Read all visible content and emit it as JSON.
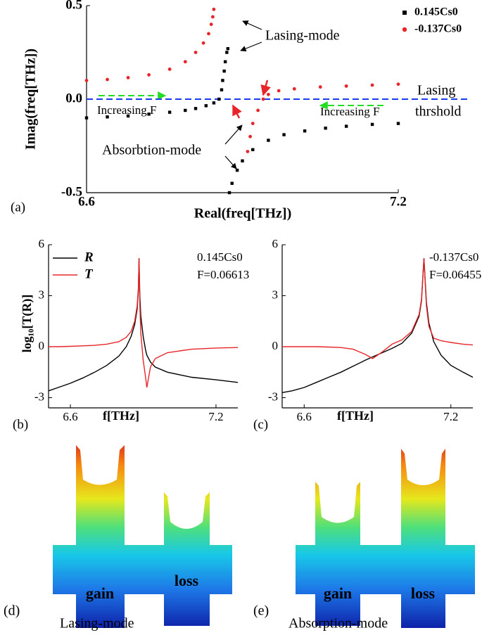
{
  "chart_data": [
    {
      "type": "scatter",
      "panel_label": "(a)",
      "x_label": "Real(freq[THz])",
      "y_label": "Imag(freq[THz])",
      "xlim": [
        6.6,
        7.2
      ],
      "ylim": [
        -0.5,
        0.5
      ],
      "xticks": [
        6.6,
        7.2
      ],
      "yticks": [
        -0.5,
        {
          "value": 0,
          "label": "0.0"
        },
        0.5
      ],
      "series": [
        {
          "name": "0.145Cs0",
          "color": "#000000",
          "marker": "square",
          "x": [
            6.6,
            6.64,
            6.68,
            6.72,
            6.76,
            6.79,
            6.81,
            6.83,
            6.845,
            6.855,
            6.86,
            6.862,
            6.865,
            6.867,
            6.87,
            6.872,
            6.875,
            6.88,
            6.89,
            6.9,
            6.92,
            6.95,
            6.98,
            7.02,
            7.06,
            7.1,
            7.15,
            7.2
          ],
          "values": [
            -0.1,
            -0.095,
            -0.09,
            -0.08,
            -0.07,
            -0.06,
            -0.05,
            -0.035,
            -0.02,
            0.0,
            0.05,
            0.1,
            0.15,
            0.2,
            0.25,
            0.27,
            -0.5,
            -0.45,
            -0.38,
            -0.33,
            -0.27,
            -0.22,
            -0.19,
            -0.17,
            -0.155,
            -0.145,
            -0.135,
            -0.13
          ]
        },
        {
          "name": "-0.137Cs0",
          "color": "#e8262a",
          "marker": "circle",
          "x": [
            6.6,
            6.64,
            6.68,
            6.72,
            6.76,
            6.79,
            6.81,
            6.825,
            6.835,
            6.84,
            6.843,
            6.845,
            6.91,
            6.915,
            6.92,
            6.93,
            6.94,
            6.95,
            6.97,
            7.0,
            7.05,
            7.1,
            7.15,
            7.2
          ],
          "values": [
            0.1,
            0.105,
            0.115,
            0.13,
            0.16,
            0.2,
            0.25,
            0.3,
            0.35,
            0.4,
            0.44,
            0.48,
            -0.28,
            -0.2,
            -0.13,
            -0.06,
            0.0,
            0.025,
            0.045,
            0.055,
            0.065,
            0.07,
            0.075,
            0.08
          ]
        }
      ],
      "threshold": {
        "value": 0,
        "color": "#1a3cf0",
        "label": [
          "Lasing",
          "thrshold"
        ]
      },
      "annotations": [
        "Lasing-mode",
        "Absorbtion-mode",
        "Increasing F",
        "Increasing F"
      ],
      "legend": "upper right"
    },
    {
      "type": "line",
      "panel_label": "(b)",
      "x_label": "f[THz]",
      "y_label": "log₁₀[T(R)]",
      "xlim": [
        6.51,
        7.29
      ],
      "ylim": [
        -3.6,
        6
      ],
      "xticks": [
        6.6,
        7.2
      ],
      "yticks": [
        -3,
        0,
        3,
        6
      ],
      "x": [
        6.51,
        6.55,
        6.6,
        6.65,
        6.7,
        6.75,
        6.8,
        6.83,
        6.85,
        6.865,
        6.875,
        6.88,
        6.883,
        6.886,
        6.89,
        6.9,
        6.91,
        6.915,
        6.93,
        6.95,
        7.0,
        7.05,
        7.1,
        7.2,
        7.29
      ],
      "series": [
        {
          "name": "R",
          "color": "#000000",
          "values": [
            -2.6,
            -2.4,
            -2.15,
            -1.85,
            -1.5,
            -1.1,
            -0.55,
            0.0,
            0.6,
            1.3,
            2.2,
            3.3,
            5.2,
            3.0,
            1.8,
            0.6,
            -0.2,
            -0.5,
            -0.9,
            -1.2,
            -1.5,
            -1.65,
            -1.8,
            -1.95,
            -2.1
          ]
        },
        {
          "name": "T",
          "color": "#e8262a",
          "values": [
            0,
            0,
            0.02,
            0.05,
            0.08,
            0.15,
            0.3,
            0.55,
            0.9,
            1.5,
            2.4,
            3.4,
            5.2,
            2.5,
            0.8,
            -0.8,
            -1.8,
            -2.4,
            -1.2,
            -0.7,
            -0.35,
            -0.25,
            -0.15,
            -0.08,
            -0.05
          ]
        }
      ],
      "annotations": [
        "0.145Cs0",
        "F=0.06613"
      ],
      "legend": "upper left"
    },
    {
      "type": "line",
      "panel_label": "(c)",
      "x_label": "f[THz]",
      "xlim": [
        6.51,
        7.29
      ],
      "ylim": [
        -3.6,
        6
      ],
      "xticks": [
        6.6,
        7.2
      ],
      "yticks": [
        -3,
        0,
        3,
        6
      ],
      "x": [
        6.51,
        6.55,
        6.6,
        6.65,
        6.7,
        6.75,
        6.8,
        6.85,
        6.88,
        6.92,
        6.96,
        7.0,
        7.04,
        7.07,
        7.08,
        7.09,
        7.1,
        7.11,
        7.13,
        7.16,
        7.2,
        7.25,
        7.29
      ],
      "series": [
        {
          "color": "#000000",
          "values": [
            -2.7,
            -2.6,
            -2.4,
            -2.1,
            -1.8,
            -1.5,
            -1.15,
            -0.8,
            -0.6,
            -0.35,
            -0.1,
            0.2,
            0.8,
            1.8,
            2.7,
            5.2,
            2.6,
            1.4,
            0.3,
            -0.5,
            -1.1,
            -1.5,
            -1.8
          ]
        },
        {
          "color": "#e8262a",
          "values": [
            0,
            0,
            0,
            0,
            -0.02,
            -0.05,
            -0.15,
            -0.45,
            -0.7,
            -0.3,
            0.15,
            0.4,
            0.9,
            1.9,
            2.8,
            5.2,
            2.4,
            1.2,
            0.5,
            0.35,
            0.25,
            0.15,
            0.1
          ]
        }
      ],
      "annotations": [
        "-0.137Cs0",
        "F=0.06455"
      ]
    }
  ],
  "illustrations": [
    {
      "panel_label": "(d)",
      "caption": "Lasing-mode",
      "labels": [
        "gain",
        "loss"
      ]
    },
    {
      "panel_label": "(e)",
      "caption": "Absorption-mode",
      "labels": [
        "gain",
        "loss"
      ]
    }
  ]
}
